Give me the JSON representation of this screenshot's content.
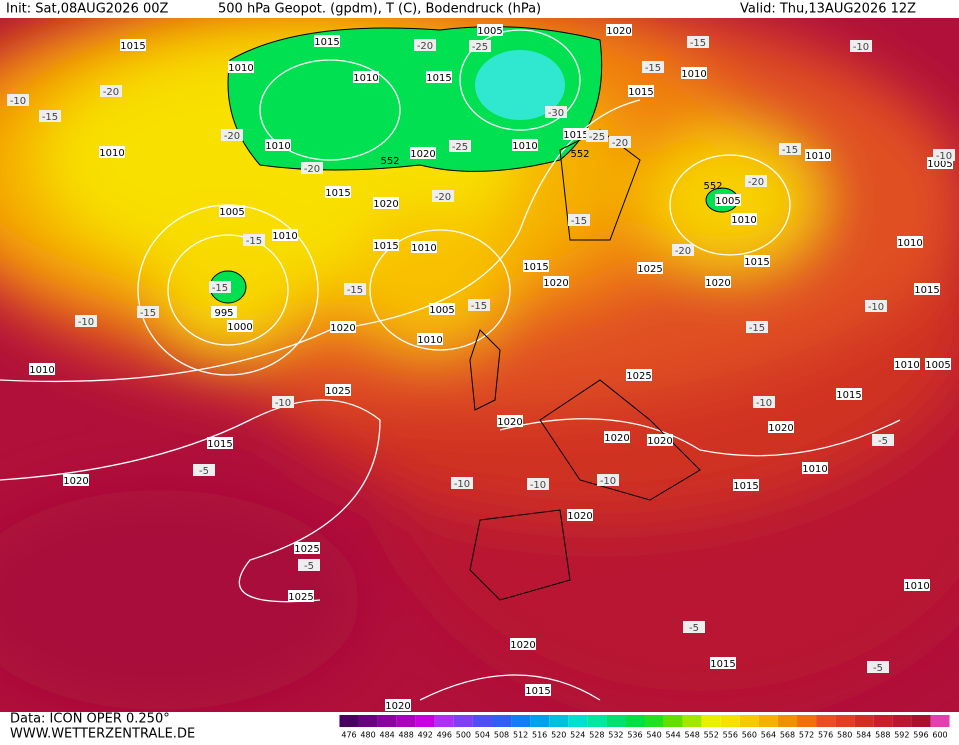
{
  "header": {
    "init": "Init: Sat,08AUG2026 00Z",
    "title": "500 hPa Geopot. (gpdm), T (C), Bodendruck (hPa)",
    "valid": "Valid: Thu,13AUG2026 12Z"
  },
  "footer": {
    "data_source": "Data: ICON OPER 0.250°",
    "website": "WWW.WETTERZENTRALE.DE"
  },
  "colorbar": {
    "labels": [
      476,
      480,
      484,
      488,
      492,
      496,
      500,
      504,
      508,
      512,
      516,
      520,
      524,
      528,
      532,
      536,
      540,
      544,
      548,
      552,
      556,
      560,
      564,
      568,
      572,
      576,
      580,
      584,
      588,
      592,
      596,
      600
    ],
    "colors": [
      "#4a0060",
      "#6a0080",
      "#8a00a0",
      "#aa00c0",
      "#c800e0",
      "#b030f0",
      "#8040f0",
      "#5050f0",
      "#3060f0",
      "#1080f0",
      "#00a0f0",
      "#00c0e0",
      "#00e0d0",
      "#00e8a0",
      "#00e070",
      "#00e040",
      "#20e020",
      "#60e000",
      "#a0e800",
      "#e8f000",
      "#f8e000",
      "#f8c800",
      "#f8b000",
      "#f09000",
      "#f07010",
      "#e85020",
      "#e04020",
      "#d03020",
      "#c82028",
      "#b81830",
      "#a81030",
      "#e040b0"
    ]
  },
  "pressure_labels": [
    1015,
    1015,
    1010,
    1010,
    1015,
    1005,
    1020,
    1010,
    1015,
    1010,
    1015,
    1020,
    1010,
    1010,
    1015,
    1020,
    1005,
    1010,
    1015,
    1010,
    1005,
    1010,
    1010,
    1005,
    1015,
    1025,
    1020,
    1015,
    1020,
    1010,
    1015,
    1005,
    995,
    1000,
    1020,
    1010,
    1010,
    1025,
    1025,
    1010,
    1005,
    1015,
    1020,
    1020,
    1020,
    1020,
    1010,
    1015,
    1020,
    1015,
    1020,
    1025,
    1025,
    1010,
    1020,
    1015,
    1015,
    1020
  ],
  "geopotential_labels": [
    552,
    552,
    552
  ],
  "temperature_labels": [
    -10,
    -15,
    -20,
    -20,
    -25,
    -20,
    -30,
    -25,
    -20,
    -25,
    -20,
    -15,
    -15,
    -10,
    -15,
    -20,
    -15,
    -20,
    -15,
    -15,
    -15,
    -10,
    -15,
    -15,
    -20,
    -10,
    -15,
    -10,
    -10,
    -10,
    -5,
    -5,
    -10,
    -10,
    -10,
    -5,
    -5,
    -5
  ]
}
